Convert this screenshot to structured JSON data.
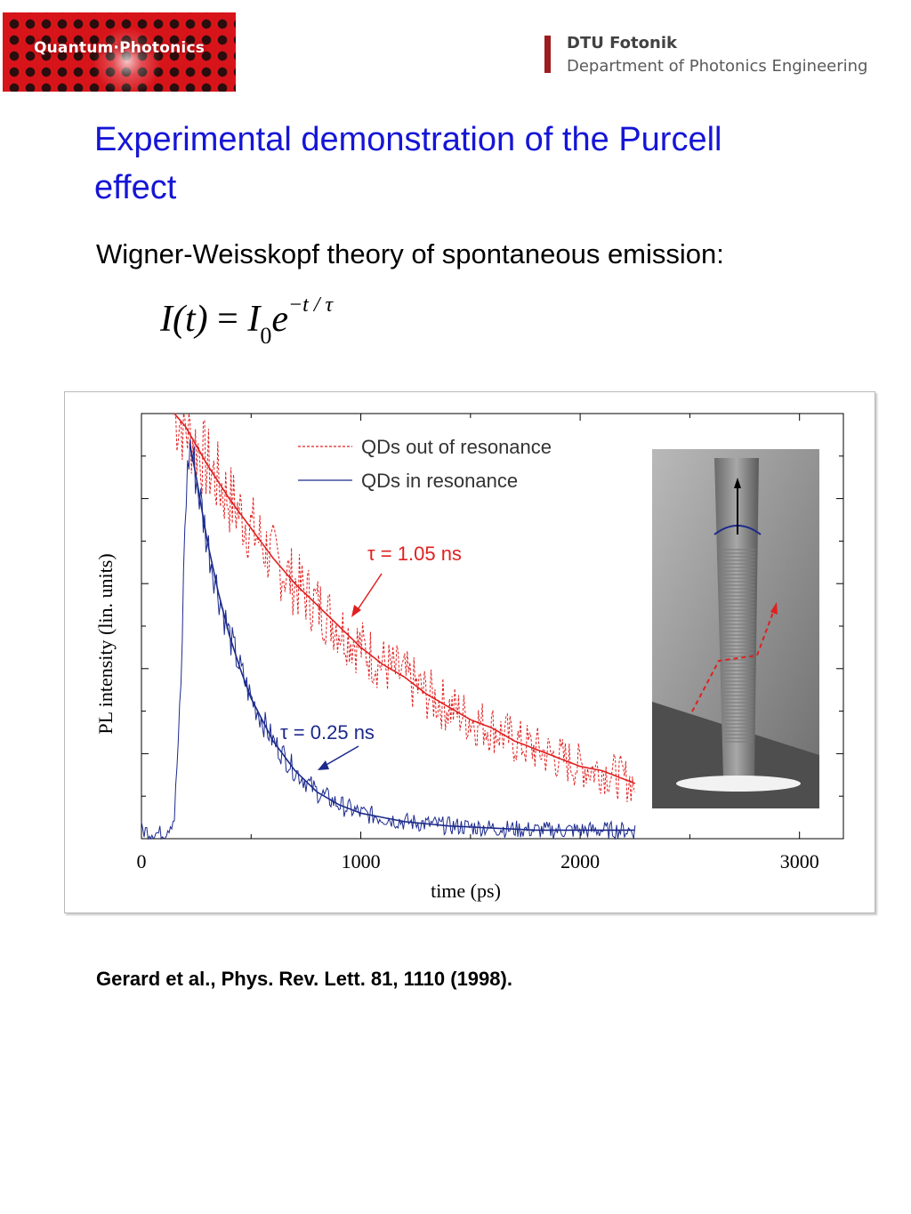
{
  "header": {
    "left_logo_text": "Quantum·Photonics",
    "right_logo_name": "DTU Fotonik",
    "right_logo_department": "Department of Photonics Engineering"
  },
  "title": "Experimental demonstration of the Purcell effect",
  "subtitle": "Wigner-Weisskopf theory of spontaneous emission:",
  "equation": {
    "lhs": "I(t)",
    "equals": "=",
    "base": "I",
    "sub": "0",
    "exp_base": "e",
    "exponent": "−t / τ"
  },
  "colors": {
    "title": "#1515d6",
    "red_series": "#e02020",
    "blue_series": "#1c2a8c",
    "dtu_red": "#9d1c1f"
  },
  "chart_data": {
    "type": "line",
    "xlabel": "time (ps)",
    "ylabel": "PL intensity (lin. units)",
    "xlim": [
      0,
      3200
    ],
    "ylim": [
      0,
      1.0
    ],
    "xticks": [
      0,
      1000,
      2000,
      3000
    ],
    "y_tick_labels_shown": false,
    "legend_position": "top-right",
    "series": [
      {
        "name": "QDs out of resonance",
        "style": "dashed",
        "color": "#e02020",
        "fit": "exponential",
        "x": [
          150,
          200,
          300,
          400,
          500,
          600,
          700,
          800,
          900,
          1000,
          1100,
          1200,
          1300,
          1400,
          1500,
          1600,
          1700,
          1800,
          1900,
          2000,
          2100,
          2200,
          2250
        ],
        "y": [
          1.0,
          0.97,
          0.88,
          0.8,
          0.73,
          0.66,
          0.6,
          0.55,
          0.5,
          0.45,
          0.41,
          0.38,
          0.34,
          0.31,
          0.28,
          0.26,
          0.23,
          0.21,
          0.19,
          0.17,
          0.16,
          0.14,
          0.13
        ]
      },
      {
        "name": "QDs in resonance",
        "style": "solid",
        "color": "#1c2a8c",
        "fit": "exponential",
        "x": [
          0,
          100,
          150,
          180,
          200,
          220,
          250,
          300,
          350,
          400,
          450,
          500,
          600,
          700,
          800,
          900,
          1000,
          1200,
          1400,
          1600,
          1800,
          2000,
          2250
        ],
        "y": [
          0.02,
          0.01,
          0.05,
          0.35,
          0.78,
          0.93,
          0.85,
          0.7,
          0.58,
          0.48,
          0.4,
          0.33,
          0.23,
          0.16,
          0.11,
          0.08,
          0.06,
          0.04,
          0.03,
          0.025,
          0.02,
          0.02,
          0.02
        ]
      }
    ],
    "annotations": [
      {
        "text": "τ = 1.05 ns",
        "color": "#e02020",
        "points_to_series": "QDs out of resonance"
      },
      {
        "text": "τ = 0.25 ns",
        "color": "#1c2a8c",
        "points_to_series": "QDs in resonance"
      }
    ],
    "inset": "SEM image of a micropillar cavity with emission arrows"
  },
  "citation": "Gerard et al., Phys. Rev. Lett. 81, 1110 (1998)."
}
